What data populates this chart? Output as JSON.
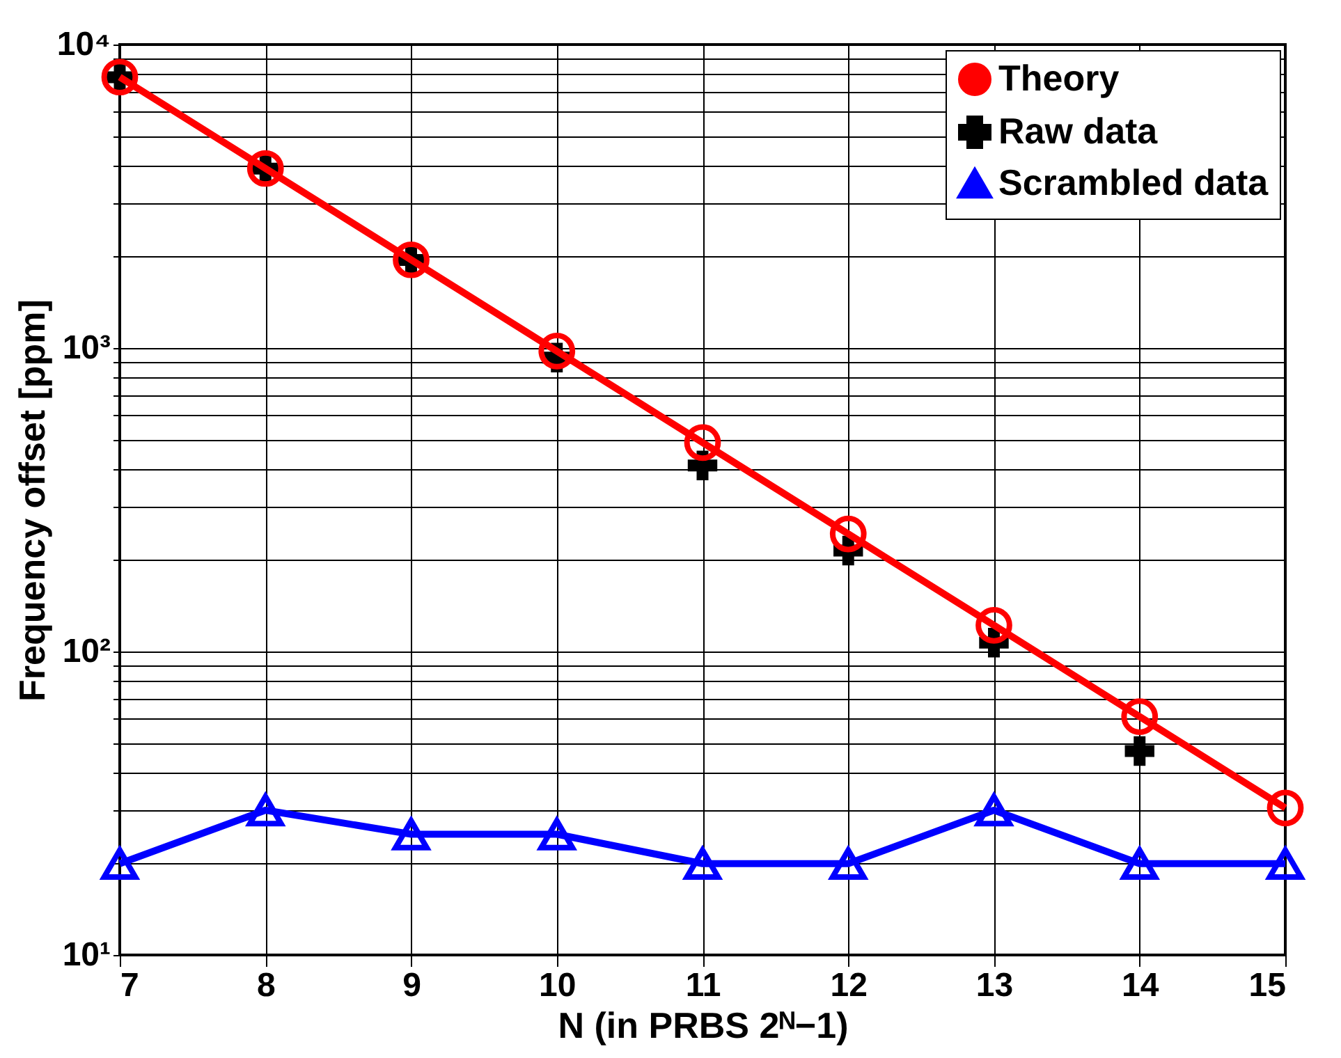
{
  "chart_data": {
    "type": "line",
    "xlabel": "N (in PRBS 2ᴺ−1)",
    "ylabel": "Frequency offset [ppm]",
    "x": [
      7,
      8,
      9,
      10,
      11,
      12,
      13,
      14,
      15
    ],
    "series": [
      {
        "name": "Theory",
        "marker": "circle",
        "color": "#ff0000",
        "values": [
          7812,
          3906,
          1953,
          977,
          488,
          244,
          122,
          61,
          30.5
        ]
      },
      {
        "name": "Raw data",
        "type": "scatter",
        "marker": "cross",
        "color": "#000000",
        "values": [
          7800,
          3900,
          1950,
          930,
          410,
          215,
          107,
          47,
          null
        ]
      },
      {
        "name": "Scrambled data",
        "marker": "triangle",
        "color": "#0000ff",
        "values": [
          20,
          30,
          25,
          25,
          20,
          20,
          30,
          20,
          20
        ]
      }
    ],
    "log": "y",
    "xlim": [
      7,
      15
    ],
    "xticks": [
      7,
      8,
      9,
      10,
      11,
      12,
      13,
      14,
      15
    ],
    "ylim": [
      10,
      10000
    ],
    "yticks": [
      {
        "value": 10,
        "label": "10¹"
      },
      {
        "value": 20,
        "label": null
      },
      {
        "value": 30,
        "label": null
      },
      {
        "value": 40,
        "label": null
      },
      {
        "value": 50,
        "label": null
      },
      {
        "value": 60,
        "label": null
      },
      {
        "value": 70,
        "label": null
      },
      {
        "value": 80,
        "label": null
      },
      {
        "value": 90,
        "label": null
      },
      {
        "value": 100,
        "label": "10²"
      },
      {
        "value": 200,
        "label": null
      },
      {
        "value": 300,
        "label": null
      },
      {
        "value": 400,
        "label": null
      },
      {
        "value": 500,
        "label": null
      },
      {
        "value": 600,
        "label": null
      },
      {
        "value": 700,
        "label": null
      },
      {
        "value": 800,
        "label": null
      },
      {
        "value": 900,
        "label": null
      },
      {
        "value": 1000,
        "label": "10³"
      },
      {
        "value": 2000,
        "label": null
      },
      {
        "value": 3000,
        "label": null
      },
      {
        "value": 4000,
        "label": null
      },
      {
        "value": 5000,
        "label": null
      },
      {
        "value": 6000,
        "label": null
      },
      {
        "value": 7000,
        "label": null
      },
      {
        "value": 8000,
        "label": null
      },
      {
        "value": 9000,
        "label": null
      },
      {
        "value": 10000,
        "label": "10⁴"
      }
    ],
    "grid": true,
    "legend": "top right",
    "line_style": "solid"
  }
}
